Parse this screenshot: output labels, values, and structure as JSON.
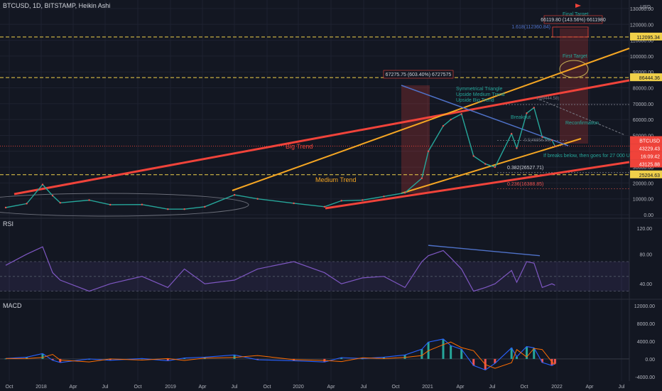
{
  "header": {
    "title": "BTCUSD, 1D, BITSTAMP, Heikin Ashi"
  },
  "panels": {
    "rsi_label": "RSI",
    "macd_label": "MACD"
  },
  "price_axis": {
    "unit": "USD",
    "ticks": [
      "130000.00",
      "120000.00",
      "110000.00",
      "100000.00",
      "90000.00",
      "80000.00",
      "70000.00",
      "60000.00",
      "50000.00",
      "40000.00",
      "30000.00",
      "20000.00",
      "10000.00",
      "0.00"
    ]
  },
  "rsi_axis": {
    "ticks": [
      "120.00",
      "80.00",
      "40.00"
    ]
  },
  "macd_axis": {
    "ticks": [
      "12000.00",
      "8000.00",
      "4000.00",
      "0.00",
      "-4000.00"
    ]
  },
  "time_axis": {
    "ticks": [
      "Oct",
      "2018",
      "Apr",
      "Jul",
      "Oct",
      "2019",
      "Apr",
      "Jul",
      "Oct",
      "2020",
      "Apr",
      "Jul",
      "Oct",
      "2021",
      "Apr",
      "Jul",
      "Oct",
      "2022",
      "Apr",
      "Jul"
    ]
  },
  "price_badges": {
    "level_1": "112095.34",
    "level_2": "86444.36",
    "last_symbol": "BTCUSD",
    "last_price": "43229.43",
    "countdown": "16:09:42",
    "marker": "43125.88",
    "level_3": "25204.63"
  },
  "annotations": {
    "final_target": "Final Target",
    "final_measure": "66119.80 (143.56%) 6611980",
    "fib_1618": "1.618(112360.84)",
    "first_target": "First Target",
    "left_measure": "67275.75 (603.40%) 6727575",
    "symmetrical": "Symmetrical Triangle",
    "upside_medium": "Upside Medium Trend",
    "upside_big": "Upside Big Trend",
    "breakout": "Breakout",
    "fib_1": "1(69444.58)",
    "fib_05": "0.5(46856.56)",
    "reconfirmation": "Reconfirmation",
    "if_breaks": "If breaks below, then goes for 27 000 USD",
    "fib_0382": "0.382(26527.71)",
    "fib_0236": "0.236(16388.85)",
    "big_trend": "Big Trend",
    "medium_trend": "Medium Trend"
  },
  "colors": {
    "background": "#131722",
    "big_trend": "#f0433a",
    "medium_trend": "#f5a623",
    "triangle_line": "#4f72c9",
    "target_line": "#f0d04a",
    "rsi": "#7e57c2",
    "macd": "#2962ff",
    "signal": "#ff6d00"
  },
  "chart_data": {
    "type": "line",
    "title": "BTCUSD, 1D, BITSTAMP, Heikin Ashi",
    "xlabel": "",
    "ylabel": "",
    "x_range": [
      "2017-09",
      "2022-08"
    ],
    "ylim": [
      0,
      130000
    ],
    "series": [
      {
        "x": [
          "2017-09-01",
          "2017-11-01",
          "2017-12-17",
          "2018-01-15",
          "2018-02-06",
          "2018-05-01",
          "2018-07-01",
          "2018-10-01",
          "2018-12-15",
          "2019-02-01",
          "2019-04-01",
          "2019-06-26",
          "2019-09-01",
          "2019-12-15",
          "2020-03-13",
          "2020-05-01",
          "2020-07-01",
          "2020-09-01",
          "2020-11-01",
          "2020-12-20",
          "2021-01-08",
          "2021-02-20",
          "2021-03-14",
          "2021-04-14",
          "2021-05-19",
          "2021-06-22",
          "2021-07-20",
          "2021-09-06",
          "2021-09-21",
          "2021-10-20",
          "2021-11-10",
          "2021-12-04",
          "2022-01-01",
          "2022-01-10"
        ],
        "values": [
          4500,
          7000,
          19000,
          12000,
          7500,
          9200,
          6300,
          6400,
          3500,
          3500,
          5000,
          12500,
          10000,
          7200,
          5000,
          8800,
          9200,
          11500,
          13800,
          23000,
          40000,
          56000,
          60000,
          63500,
          37000,
          32000,
          30000,
          51000,
          42000,
          64000,
          67500,
          49000,
          47000,
          43229
        ]
      }
    ],
    "rsi": {
      "ylim": [
        20,
        120
      ],
      "levels": [
        70,
        30
      ],
      "values": [
        65,
        80,
        90,
        55,
        45,
        30,
        40,
        50,
        35,
        60,
        40,
        45,
        60,
        70,
        55,
        40,
        48,
        50,
        35,
        70,
        78,
        85,
        75,
        60,
        30,
        35,
        40,
        58,
        42,
        70,
        68,
        35,
        40,
        38
      ]
    },
    "macd": {
      "ylim": [
        -5000,
        13000
      ],
      "values": [
        100,
        400,
        1200,
        -300,
        -800,
        0,
        -300,
        100,
        -400,
        200,
        400,
        900,
        -200,
        -400,
        -700,
        300,
        100,
        400,
        900,
        2200,
        3800,
        4500,
        3000,
        2200,
        -1500,
        -2500,
        -1000,
        2500,
        500,
        2800,
        2500,
        -800,
        -1500,
        -1100
      ]
    }
  }
}
